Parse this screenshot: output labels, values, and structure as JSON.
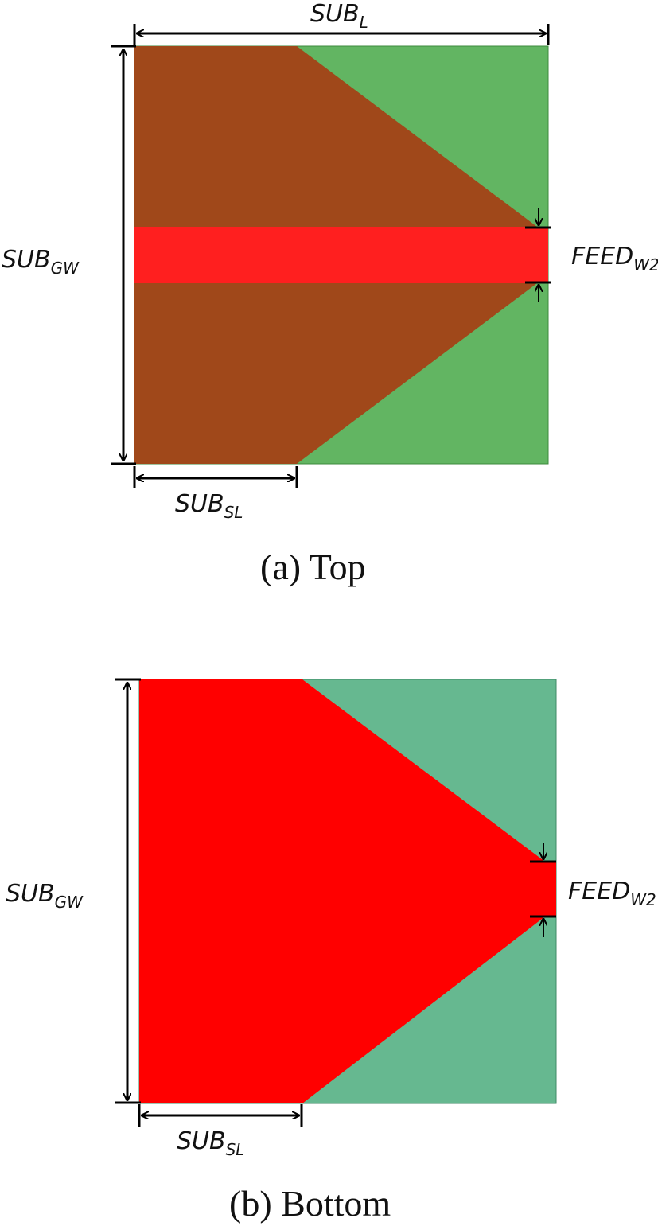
{
  "panels": [
    {
      "caption": "(a)  Top",
      "labels": {
        "length": {
          "main": "SUB",
          "sub": "L"
        },
        "ground_width": {
          "main": "SUB",
          "sub": "GW"
        },
        "feed_width": {
          "main": "FEED",
          "sub": "W2"
        },
        "short_length": {
          "main": "SUB",
          "sub": "SL"
        }
      },
      "colors": {
        "substrate": "#62b562",
        "ground": "#a0481a",
        "feed": "#ff1f1f"
      }
    },
    {
      "caption": "(b)  Bottom",
      "labels": {
        "ground_width": {
          "main": "SUB",
          "sub": "GW"
        },
        "feed_width": {
          "main": "FEED",
          "sub": "W2"
        },
        "short_length": {
          "main": "SUB",
          "sub": "SL"
        }
      },
      "colors": {
        "substrate": "#66b890",
        "ground": "#ff0000"
      }
    }
  ]
}
